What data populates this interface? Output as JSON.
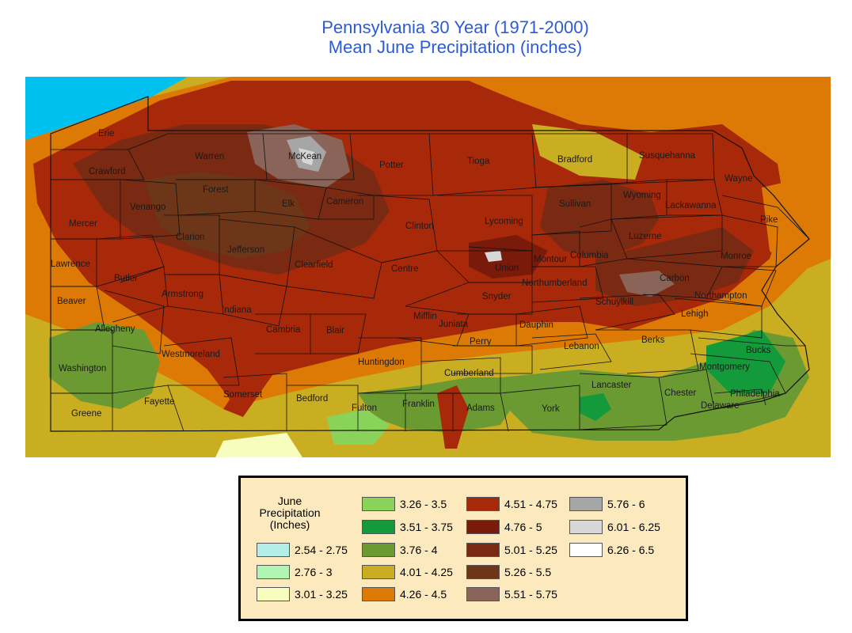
{
  "title": {
    "line1": "Pennsylvania 30 Year (1971-2000)",
    "line2": "Mean June Precipitation (inches)"
  },
  "counties": [
    "Erie",
    "Crawford",
    "Warren",
    "McKean",
    "Potter",
    "Tioga",
    "Bradford",
    "Susquehanna",
    "Wayne",
    "Mercer",
    "Venango",
    "Forest",
    "Elk",
    "Cameron",
    "Clinton",
    "Lycoming",
    "Sullivan",
    "Wyoming",
    "Lackawanna",
    "Pike",
    "Lawrence",
    "Clarion",
    "Jefferson",
    "Clearfield",
    "Centre",
    "Union",
    "Montour",
    "Columbia",
    "Luzerne",
    "Monroe",
    "Butler",
    "Armstrong",
    "Indiana",
    "Snyder",
    "Northumberland",
    "Carbon",
    "Northampton",
    "Beaver",
    "Allegheny",
    "Mifflin",
    "Juniata",
    "Dauphin",
    "Schuylkill",
    "Lehigh",
    "Cambria",
    "Blair",
    "Perry",
    "Lebanon",
    "Berks",
    "Bucks",
    "Westmoreland",
    "Washington",
    "Huntingdon",
    "Cumberland",
    "Montgomery",
    "Lancaster",
    "Somerset",
    "Bedford",
    "Fulton",
    "Franklin",
    "Adams",
    "York",
    "Chester",
    "Philadelphia",
    "Delaware",
    "Fayette",
    "Greene"
  ],
  "legend": {
    "title_line1": "June",
    "title_line2": "Precipitation",
    "title_line3": "(Inches)",
    "items": [
      {
        "label": "2.54 - 2.75",
        "color": "#b3eee8"
      },
      {
        "label": "2.76 - 3",
        "color": "#b0f5b2"
      },
      {
        "label": "3.01 - 3.25",
        "color": "#f6fdbd"
      },
      {
        "label": "3.26 - 3.5",
        "color": "#8ad35a"
      },
      {
        "label": "3.51 - 3.75",
        "color": "#139a3b"
      },
      {
        "label": "3.76 - 4",
        "color": "#6b9a33"
      },
      {
        "label": "4.01 - 4.25",
        "color": "#c9ae22"
      },
      {
        "label": "4.26 - 4.5",
        "color": "#dd7a05"
      },
      {
        "label": "4.51 - 4.75",
        "color": "#a8280a"
      },
      {
        "label": "4.76 - 5",
        "color": "#7a1a0a"
      },
      {
        "label": "5.01 - 5.25",
        "color": "#7a2a12"
      },
      {
        "label": "5.26 - 5.5",
        "color": "#6e3618"
      },
      {
        "label": "5.51 - 5.75",
        "color": "#8a6458"
      },
      {
        "label": "5.76 - 6",
        "color": "#a6a6a6"
      },
      {
        "label": "6.01 - 6.25",
        "color": "#d7d7d7"
      },
      {
        "label": "6.26 - 6.5",
        "color": "#ffffff"
      }
    ]
  }
}
